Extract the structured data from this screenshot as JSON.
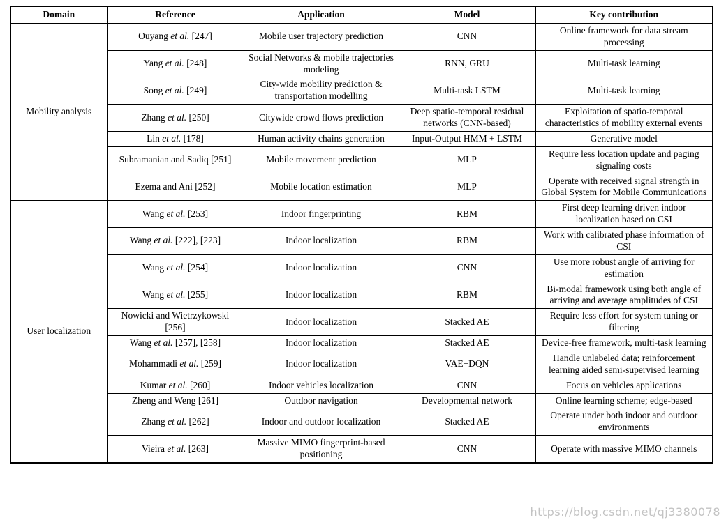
{
  "watermark": "https://blog.csdn.net/qj3380078",
  "table": {
    "headers": [
      "Domain",
      "Reference",
      "Application",
      "Model",
      "Key contribution"
    ],
    "groups": [
      {
        "domain": "Mobility analysis",
        "rows": [
          {
            "reference": "Ouyang et al. [247]",
            "application": "Mobile user trajectory prediction",
            "model": "CNN",
            "key_contribution": "Online framework for data stream processing"
          },
          {
            "reference": "Yang et al. [248]",
            "application": "Social Networks & mobile trajectories modeling",
            "model": "RNN, GRU",
            "key_contribution": "Multi-task learning"
          },
          {
            "reference": "Song et al. [249]",
            "application": "City-wide mobility prediction & transportation modelling",
            "model": "Multi-task LSTM",
            "key_contribution": "Multi-task learning"
          },
          {
            "reference": "Zhang et al. [250]",
            "application": "Citywide crowd flows prediction",
            "model": "Deep spatio-temporal residual networks (CNN-based)",
            "key_contribution": "Exploitation of spatio-temporal characteristics of mobility external events"
          },
          {
            "reference": "Lin et al. [178]",
            "application": "Human activity chains generation",
            "model": "Input-Output HMM + LSTM",
            "key_contribution": "Generative model"
          },
          {
            "reference": "Subramanian and Sadiq [251]",
            "application": "Mobile movement prediction",
            "model": "MLP",
            "key_contribution": "Require less location update and paging signaling costs"
          },
          {
            "reference": "Ezema and Ani [252]",
            "application": "Mobile location estimation",
            "model": "MLP",
            "key_contribution": "Operate with received signal strength in Global System for Mobile Communications"
          }
        ]
      },
      {
        "domain": "User localization",
        "rows": [
          {
            "reference": "Wang et al. [253]",
            "application": "Indoor fingerprinting",
            "model": "RBM",
            "key_contribution": "First deep learning driven indoor localization based on CSI"
          },
          {
            "reference": "Wang et al. [222], [223]",
            "application": "Indoor localization",
            "model": "RBM",
            "key_contribution": "Work with calibrated phase information of CSI"
          },
          {
            "reference": "Wang et al. [254]",
            "application": "Indoor localization",
            "model": "CNN",
            "key_contribution": "Use more robust angle of arriving for estimation"
          },
          {
            "reference": "Wang et al. [255]",
            "application": "Indoor localization",
            "model": "RBM",
            "key_contribution": "Bi-modal framework using both angle of arriving and average amplitudes of CSI"
          },
          {
            "reference": "Nowicki and Wietrzykowski [256]",
            "application": "Indoor localization",
            "model": "Stacked AE",
            "key_contribution": "Require less effort for system tuning or filtering"
          },
          {
            "reference": "Wang et al. [257], [258]",
            "application": "Indoor localization",
            "model": "Stacked AE",
            "key_contribution": "Device-free framework, multi-task learning"
          },
          {
            "reference": "Mohammadi et al. [259]",
            "application": "Indoor localization",
            "model": "VAE+DQN",
            "key_contribution": "Handle unlabeled data; reinforcement learning aided semi-supervised learning"
          },
          {
            "reference": "Kumar et al. [260]",
            "application": "Indoor vehicles localization",
            "model": "CNN",
            "key_contribution": "Focus on vehicles applications"
          },
          {
            "reference": "Zheng and Weng [261]",
            "application": "Outdoor navigation",
            "model": "Developmental network",
            "key_contribution": "Online learning scheme; edge-based"
          },
          {
            "reference": "Zhang et al. [262]",
            "application": "Indoor and outdoor localization",
            "model": "Stacked AE",
            "key_contribution": "Operate under both indoor and outdoor environments"
          },
          {
            "reference": "Vieira et al. [263]",
            "application": "Massive MIMO fingerprint-based positioning",
            "model": "CNN",
            "key_contribution": "Operate with massive MIMO channels"
          }
        ]
      }
    ]
  }
}
